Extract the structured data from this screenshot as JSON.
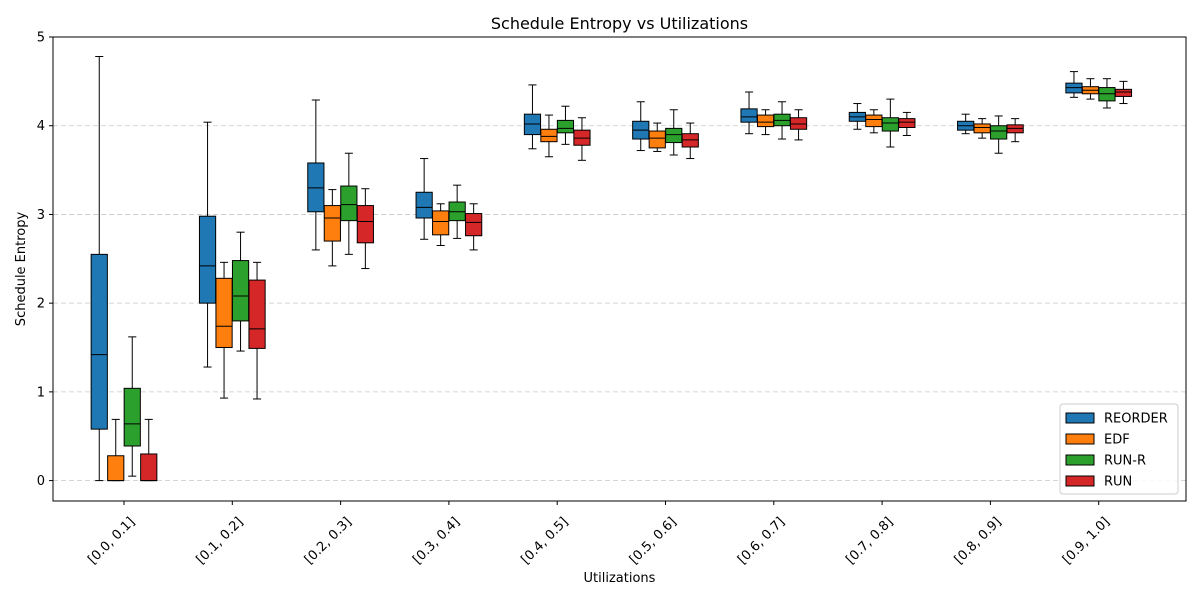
{
  "chart_data": {
    "type": "box",
    "title": "Schedule Entropy vs Utilizations",
    "xlabel": "Utilizations",
    "ylabel": "Schedule Entropy",
    "ylim": [
      -0.23,
      5.0
    ],
    "yticks": [
      0,
      1,
      2,
      3,
      4,
      5
    ],
    "grid": "y-dashed",
    "legend_position": "lower-right",
    "categories": [
      "[0.0, 0.1]",
      "[0.1, 0.2]",
      "[0.2, 0.3]",
      "[0.3, 0.4]",
      "[0.4, 0.5]",
      "[0.5, 0.6]",
      "[0.6, 0.7]",
      "[0.7, 0.8]",
      "[0.8, 0.9]",
      "[0.9, 1.0]"
    ],
    "series": [
      {
        "name": "REORDER",
        "color": "#1f77b4",
        "boxes": [
          {
            "min": 0.0,
            "q1": 0.58,
            "median": 1.42,
            "q3": 2.55,
            "max": 4.78
          },
          {
            "min": 1.28,
            "q1": 2.0,
            "median": 2.42,
            "q3": 2.98,
            "max": 4.04
          },
          {
            "min": 2.6,
            "q1": 3.03,
            "median": 3.3,
            "q3": 3.58,
            "max": 4.29
          },
          {
            "min": 2.72,
            "q1": 2.96,
            "median": 3.08,
            "q3": 3.25,
            "max": 3.63
          },
          {
            "min": 3.74,
            "q1": 3.9,
            "median": 4.02,
            "q3": 4.13,
            "max": 4.46
          },
          {
            "min": 3.72,
            "q1": 3.85,
            "median": 3.95,
            "q3": 4.05,
            "max": 4.27
          },
          {
            "min": 3.91,
            "q1": 4.04,
            "median": 4.1,
            "q3": 4.19,
            "max": 4.38
          },
          {
            "min": 3.96,
            "q1": 4.05,
            "median": 4.1,
            "q3": 4.15,
            "max": 4.25
          },
          {
            "min": 3.91,
            "q1": 3.95,
            "median": 4.0,
            "q3": 4.05,
            "max": 4.13
          },
          {
            "min": 4.32,
            "q1": 4.37,
            "median": 4.43,
            "q3": 4.48,
            "max": 4.61
          }
        ]
      },
      {
        "name": "EDF",
        "color": "#ff7f0e",
        "boxes": [
          {
            "min": 0.0,
            "q1": 0.0,
            "median": 0.0,
            "q3": 0.28,
            "max": 0.69
          },
          {
            "min": 0.93,
            "q1": 1.5,
            "median": 1.74,
            "q3": 2.28,
            "max": 2.46
          },
          {
            "min": 2.42,
            "q1": 2.7,
            "median": 2.96,
            "q3": 3.1,
            "max": 3.28
          },
          {
            "min": 2.65,
            "q1": 2.77,
            "median": 2.92,
            "q3": 3.04,
            "max": 3.12
          },
          {
            "min": 3.65,
            "q1": 3.82,
            "median": 3.88,
            "q3": 3.96,
            "max": 4.12
          },
          {
            "min": 3.71,
            "q1": 3.75,
            "median": 3.86,
            "q3": 3.94,
            "max": 4.03
          },
          {
            "min": 3.9,
            "q1": 3.99,
            "median": 4.04,
            "q3": 4.12,
            "max": 4.18
          },
          {
            "min": 3.92,
            "q1": 3.99,
            "median": 4.07,
            "q3": 4.12,
            "max": 4.18
          },
          {
            "min": 3.86,
            "q1": 3.92,
            "median": 3.98,
            "q3": 4.02,
            "max": 4.08
          },
          {
            "min": 4.3,
            "q1": 4.36,
            "median": 4.4,
            "q3": 4.44,
            "max": 4.53
          }
        ]
      },
      {
        "name": "RUN-R",
        "color": "#2ca02c",
        "boxes": [
          {
            "min": 0.05,
            "q1": 0.39,
            "median": 0.64,
            "q3": 1.04,
            "max": 1.62
          },
          {
            "min": 1.46,
            "q1": 1.8,
            "median": 2.08,
            "q3": 2.48,
            "max": 2.8
          },
          {
            "min": 2.55,
            "q1": 2.93,
            "median": 3.11,
            "q3": 3.32,
            "max": 3.69
          },
          {
            "min": 2.73,
            "q1": 2.93,
            "median": 3.03,
            "q3": 3.14,
            "max": 3.33
          },
          {
            "min": 3.79,
            "q1": 3.92,
            "median": 3.97,
            "q3": 4.06,
            "max": 4.22
          },
          {
            "min": 3.67,
            "q1": 3.81,
            "median": 3.9,
            "q3": 3.97,
            "max": 4.18
          },
          {
            "min": 3.85,
            "q1": 4.0,
            "median": 4.06,
            "q3": 4.13,
            "max": 4.27
          },
          {
            "min": 3.76,
            "q1": 3.94,
            "median": 4.03,
            "q3": 4.09,
            "max": 4.3
          },
          {
            "min": 3.69,
            "q1": 3.85,
            "median": 3.94,
            "q3": 4.0,
            "max": 4.11
          },
          {
            "min": 4.2,
            "q1": 4.28,
            "median": 4.36,
            "q3": 4.43,
            "max": 4.53
          }
        ]
      },
      {
        "name": "RUN",
        "color": "#d62728",
        "boxes": [
          {
            "min": 0.0,
            "q1": 0.0,
            "median": 0.0,
            "q3": 0.3,
            "max": 0.69
          },
          {
            "min": 0.92,
            "q1": 1.49,
            "median": 1.71,
            "q3": 2.26,
            "max": 2.46
          },
          {
            "min": 2.39,
            "q1": 2.68,
            "median": 2.92,
            "q3": 3.1,
            "max": 3.29
          },
          {
            "min": 2.6,
            "q1": 2.76,
            "median": 2.91,
            "q3": 3.01,
            "max": 3.12
          },
          {
            "min": 3.61,
            "q1": 3.78,
            "median": 3.86,
            "q3": 3.95,
            "max": 4.09
          },
          {
            "min": 3.63,
            "q1": 3.76,
            "median": 3.84,
            "q3": 3.91,
            "max": 4.03
          },
          {
            "min": 3.84,
            "q1": 3.96,
            "median": 4.02,
            "q3": 4.09,
            "max": 4.18
          },
          {
            "min": 3.89,
            "q1": 3.98,
            "median": 4.04,
            "q3": 4.08,
            "max": 4.15
          },
          {
            "min": 3.82,
            "q1": 3.92,
            "median": 3.97,
            "q3": 4.01,
            "max": 4.08
          },
          {
            "min": 4.25,
            "q1": 4.33,
            "median": 4.38,
            "q3": 4.41,
            "max": 4.5
          }
        ]
      }
    ]
  }
}
